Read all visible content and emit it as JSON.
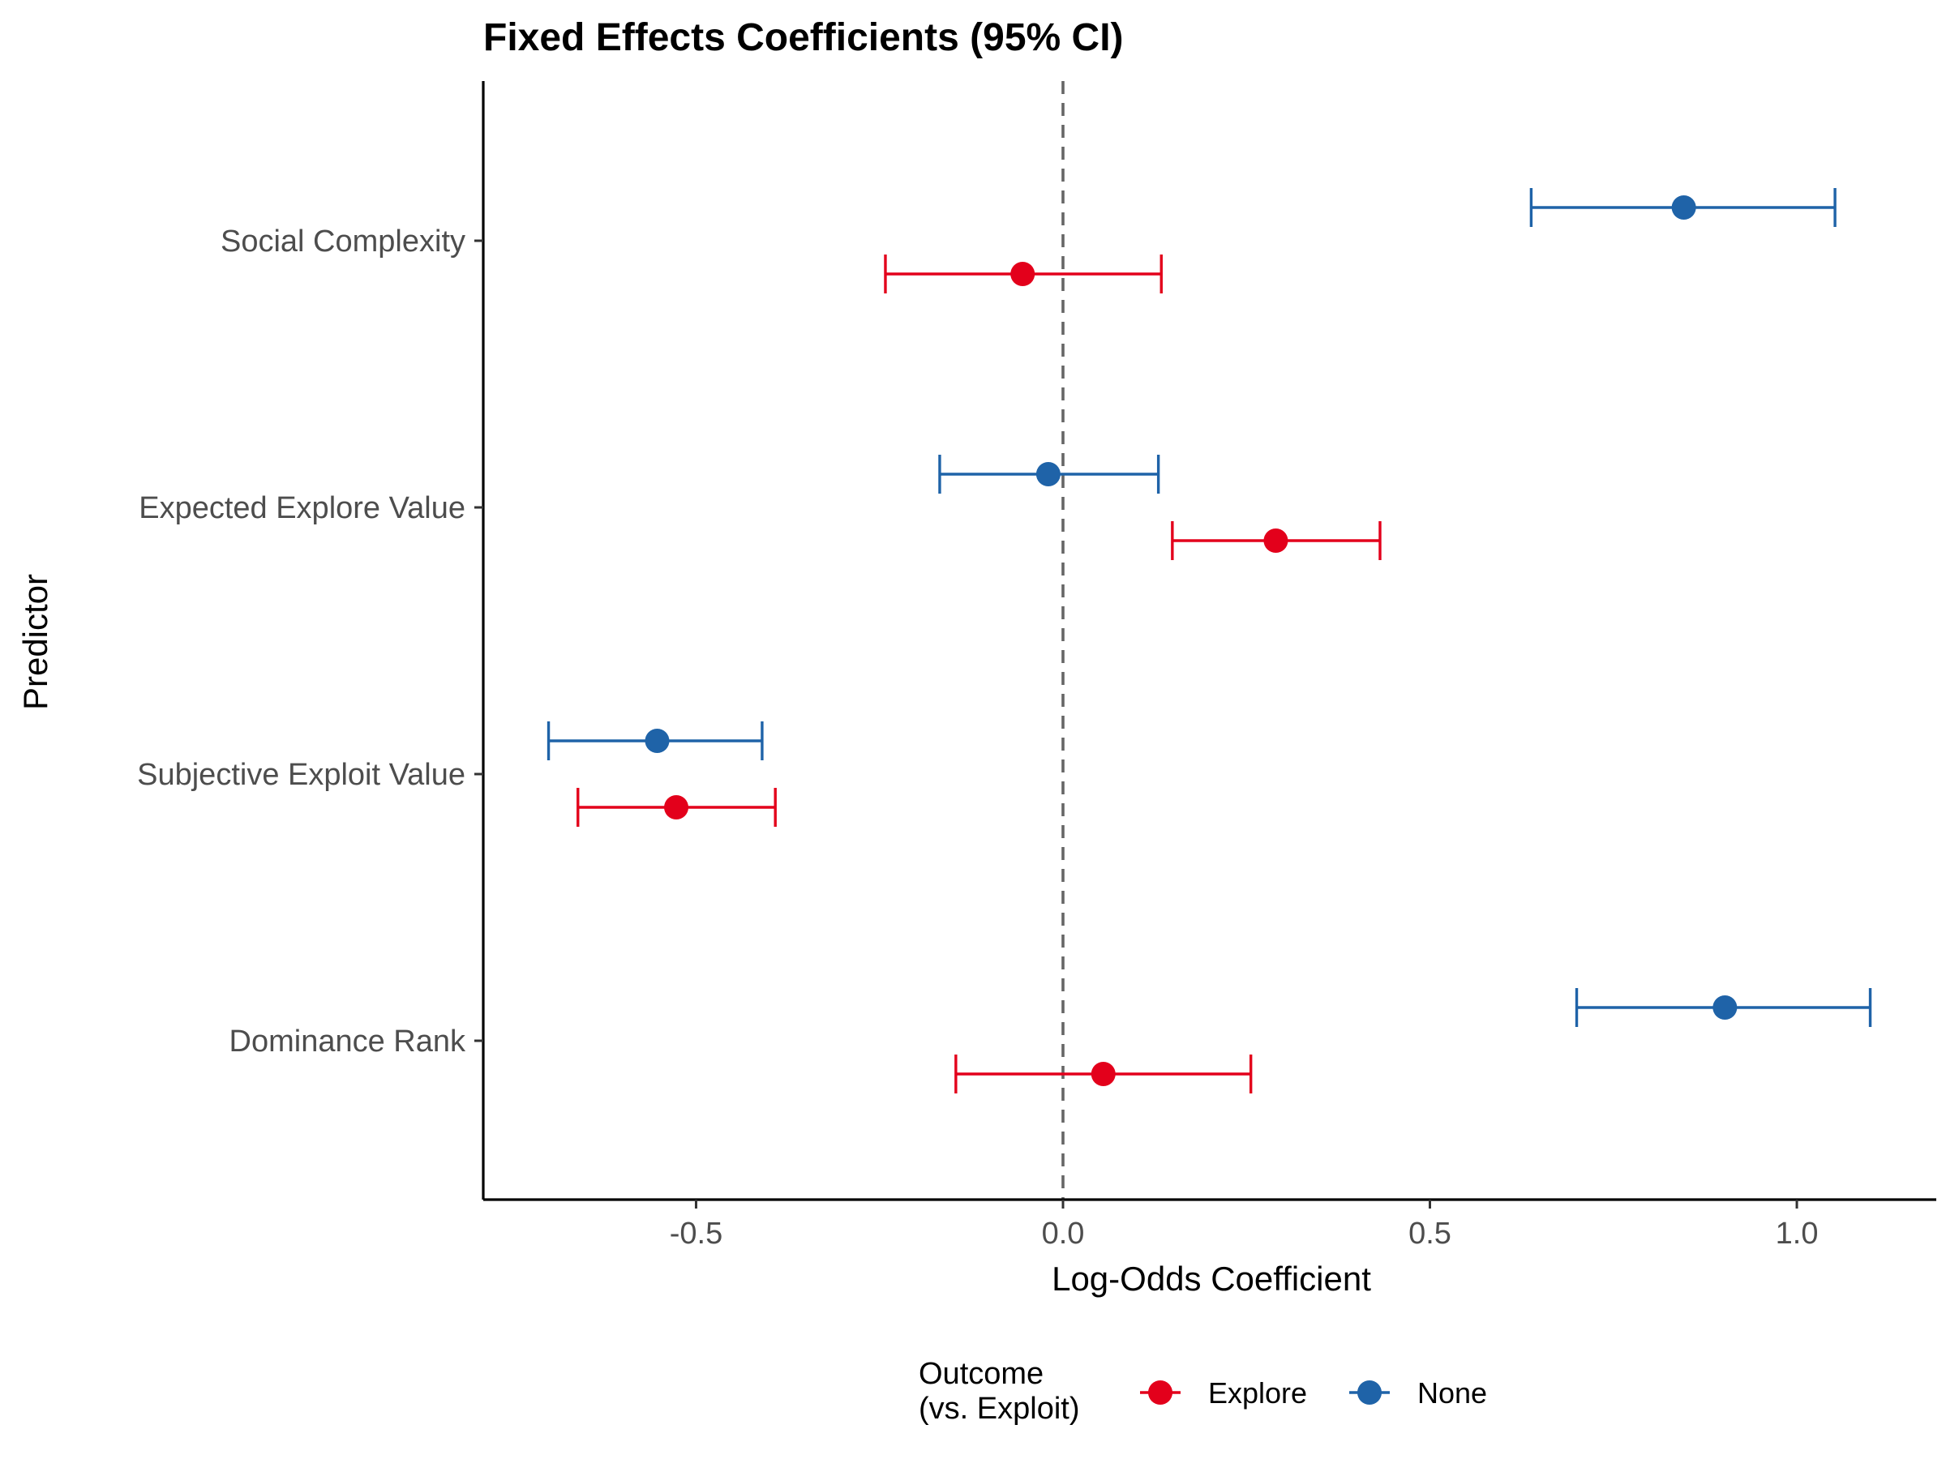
{
  "chart_data": {
    "type": "scatter",
    "title": "Fixed Effects Coefficients (95% CI)",
    "xlabel": "Log-Odds Coefficient",
    "ylabel": "Predictor",
    "xlim": [
      -0.79,
      1.19
    ],
    "xticks": [
      -0.5,
      0.0,
      0.5,
      1.0
    ],
    "xtick_labels": [
      "-0.5",
      "0.0",
      "0.5",
      "1.0"
    ],
    "reference_line": 0,
    "grid": false,
    "legend": {
      "title_lines": [
        "Outcome",
        "(vs. Exploit)"
      ],
      "position": "bottom"
    },
    "categories": [
      "Social Complexity",
      "Expected Explore Value",
      "Subjective Exploit Value",
      "Dominance Rank"
    ],
    "series": [
      {
        "name": "Explore",
        "color": "#E3001B",
        "estimates": [
          -0.055,
          0.29,
          -0.527,
          0.055
        ],
        "ci_low": [
          -0.242,
          0.149,
          -0.661,
          -0.146
        ],
        "ci_high": [
          0.134,
          0.432,
          -0.392,
          0.256
        ]
      },
      {
        "name": "None",
        "color": "#1F63A8",
        "estimates": [
          0.846,
          -0.02,
          -0.553,
          0.902
        ],
        "ci_low": [
          0.638,
          -0.168,
          -0.701,
          0.7
        ],
        "ci_high": [
          1.052,
          0.13,
          -0.41,
          1.1
        ]
      }
    ]
  }
}
